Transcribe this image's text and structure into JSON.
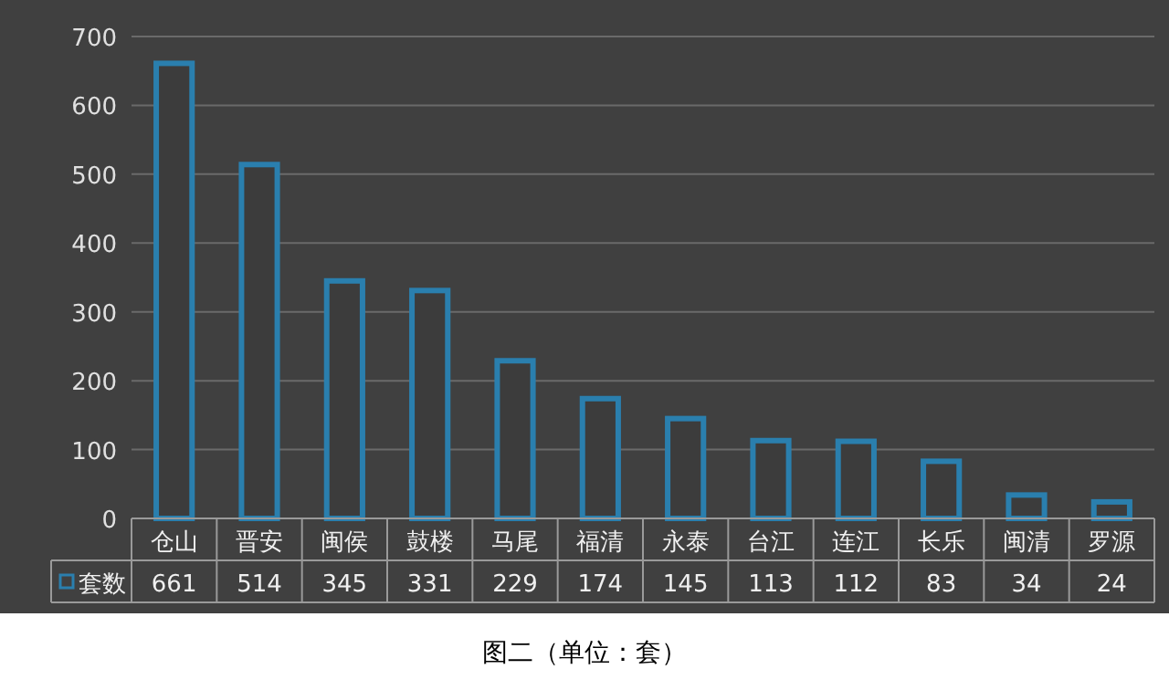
{
  "chart_data": {
    "type": "bar",
    "categories": [
      "仓山",
      "晋安",
      "闽侯",
      "鼓楼",
      "马尾",
      "福清",
      "永泰",
      "台江",
      "连江",
      "长乐",
      "闽清",
      "罗源"
    ],
    "series": [
      {
        "name": "套数",
        "color": "#2a7fae",
        "values": [
          661,
          514,
          345,
          331,
          229,
          174,
          145,
          113,
          112,
          83,
          34,
          24
        ]
      }
    ],
    "ylim": [
      0,
      700
    ],
    "yticks": [
      0,
      100,
      200,
      300,
      400,
      500,
      600,
      700
    ],
    "grid": "y",
    "data_labels": true,
    "legend": "bottom",
    "annotations": [
      "图二（单位：套）"
    ]
  }
}
